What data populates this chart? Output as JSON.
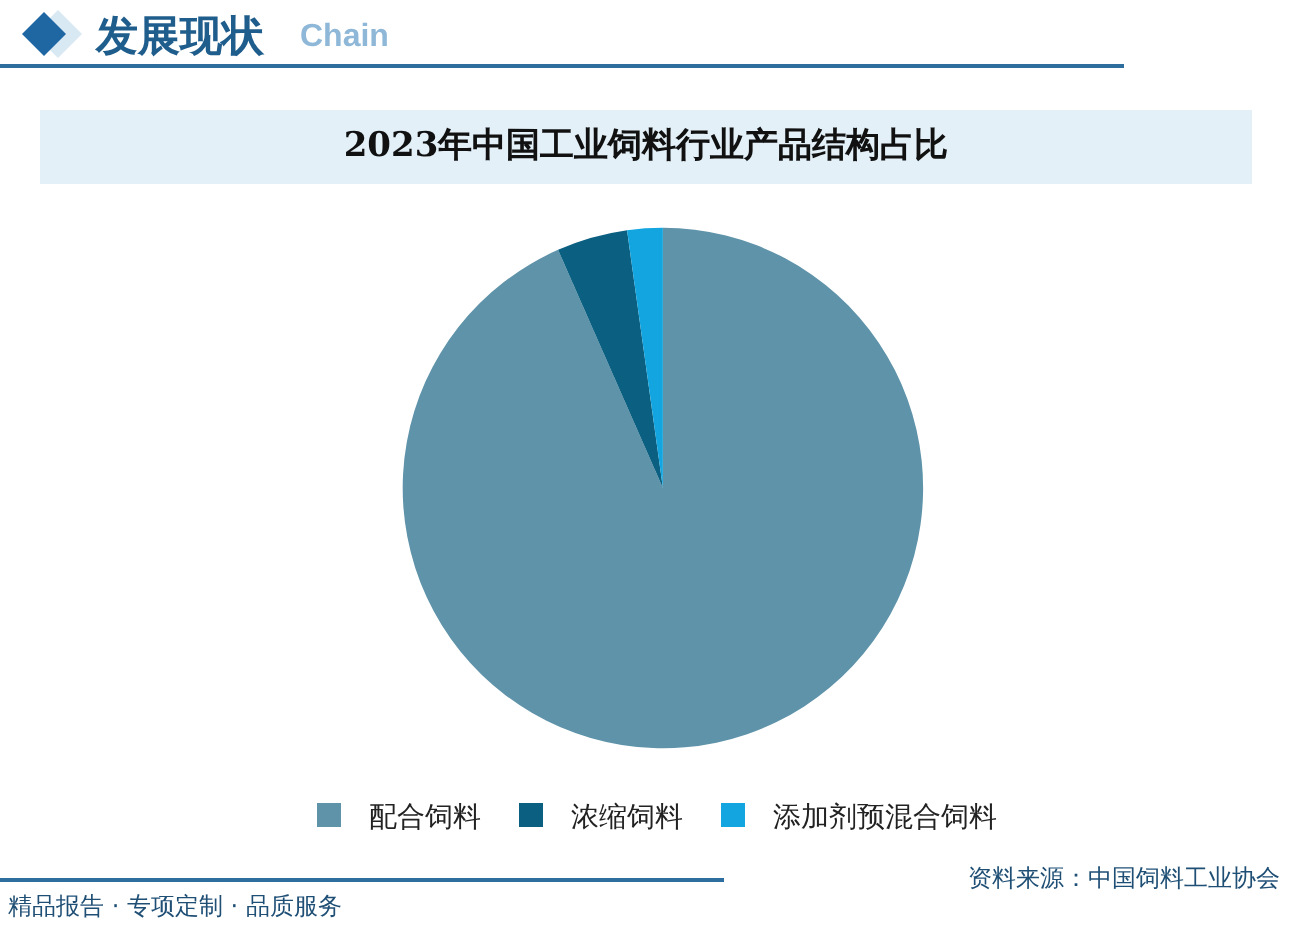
{
  "chart_data": {
    "type": "pie",
    "title": "2023年中国工业饲料行业产品结构占比",
    "categories": [
      "配合饲料",
      "浓缩饲料",
      "添加剂预混合饲料"
    ],
    "values": [
      93.4,
      4.4,
      2.2
    ],
    "colors": [
      "#5e93a9",
      "#0b5f80",
      "#12a5df"
    ],
    "legend": "bottom",
    "annotations": [
      "发展现状",
      "Chain",
      "精品报告 · 专项定制 · 品质服务",
      "资料来源：中国饲料工业协会"
    ]
  }
}
